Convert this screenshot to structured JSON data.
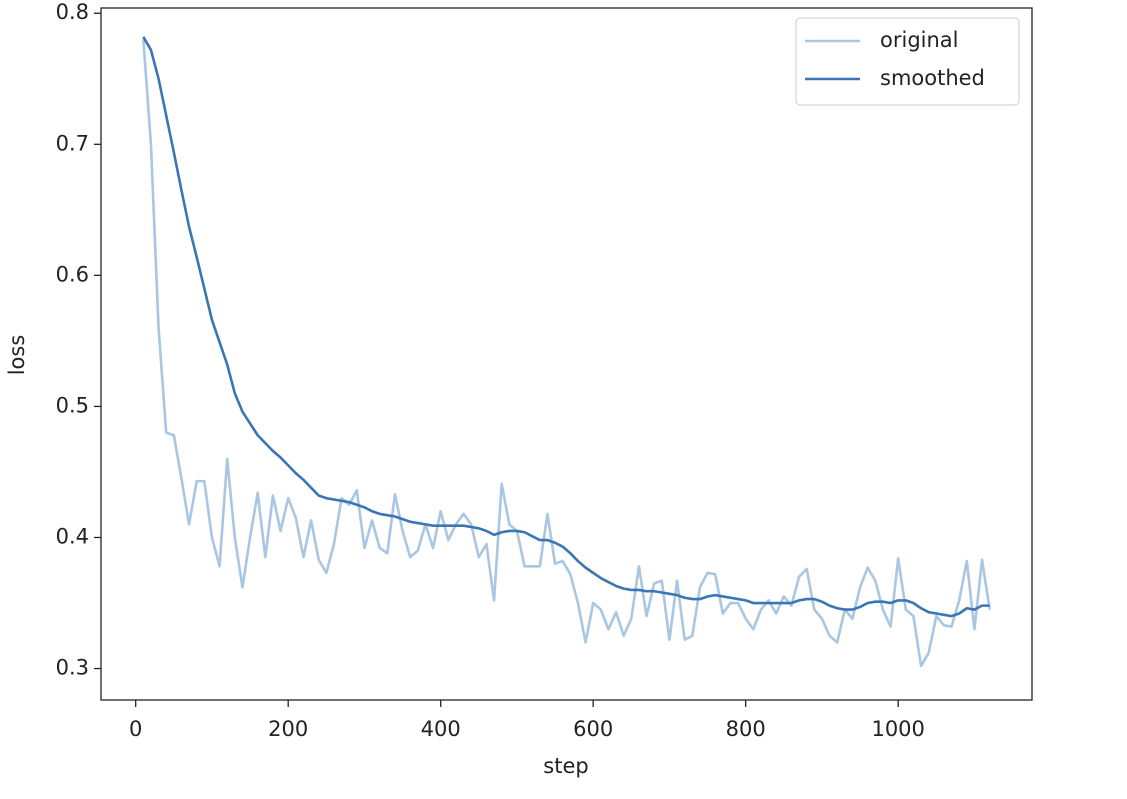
{
  "chart_data": {
    "type": "line",
    "x_label": "step",
    "y_label": "loss",
    "x": [
      10,
      20,
      30,
      40,
      50,
      60,
      70,
      80,
      90,
      100,
      110,
      120,
      130,
      140,
      150,
      160,
      170,
      180,
      190,
      200,
      210,
      220,
      230,
      240,
      250,
      260,
      270,
      280,
      290,
      300,
      310,
      320,
      330,
      340,
      350,
      360,
      370,
      380,
      390,
      400,
      410,
      420,
      430,
      440,
      450,
      460,
      470,
      480,
      490,
      500,
      510,
      520,
      530,
      540,
      550,
      560,
      570,
      580,
      590,
      600,
      610,
      620,
      630,
      640,
      650,
      660,
      670,
      680,
      690,
      700,
      710,
      720,
      730,
      740,
      750,
      760,
      770,
      780,
      790,
      800,
      810,
      820,
      830,
      840,
      850,
      860,
      870,
      880,
      890,
      900,
      910,
      920,
      930,
      940,
      950,
      960,
      970,
      980,
      990,
      1000,
      1010,
      1020,
      1030,
      1040,
      1050,
      1060,
      1070,
      1080,
      1090,
      1100,
      1110,
      1120
    ],
    "series": [
      {
        "name": "original",
        "color": "#a9c6e2",
        "values": [
          0.78,
          0.7,
          0.56,
          0.48,
          0.478,
          0.445,
          0.41,
          0.443,
          0.443,
          0.4,
          0.378,
          0.46,
          0.4,
          0.362,
          0.4,
          0.434,
          0.385,
          0.432,
          0.405,
          0.43,
          0.415,
          0.385,
          0.413,
          0.383,
          0.373,
          0.395,
          0.43,
          0.425,
          0.436,
          0.392,
          0.413,
          0.392,
          0.388,
          0.433,
          0.405,
          0.385,
          0.39,
          0.41,
          0.392,
          0.42,
          0.398,
          0.41,
          0.418,
          0.41,
          0.385,
          0.395,
          0.352,
          0.441,
          0.41,
          0.405,
          0.378,
          0.378,
          0.378,
          0.418,
          0.38,
          0.382,
          0.372,
          0.35,
          0.32,
          0.35,
          0.345,
          0.33,
          0.343,
          0.325,
          0.338,
          0.378,
          0.34,
          0.365,
          0.367,
          0.322,
          0.367,
          0.322,
          0.325,
          0.362,
          0.373,
          0.372,
          0.342,
          0.35,
          0.35,
          0.338,
          0.33,
          0.345,
          0.352,
          0.342,
          0.355,
          0.348,
          0.37,
          0.376,
          0.345,
          0.338,
          0.325,
          0.32,
          0.345,
          0.338,
          0.362,
          0.377,
          0.367,
          0.345,
          0.332,
          0.384,
          0.345,
          0.34,
          0.302,
          0.312,
          0.34,
          0.333,
          0.332,
          0.352,
          0.382,
          0.33,
          0.383,
          0.345
        ]
      },
      {
        "name": "smoothed",
        "color": "#3a76b3",
        "values": [
          0.782,
          0.772,
          0.75,
          0.722,
          0.694,
          0.665,
          0.637,
          0.614,
          0.59,
          0.566,
          0.549,
          0.532,
          0.51,
          0.496,
          0.487,
          0.478,
          0.472,
          0.466,
          0.461,
          0.455,
          0.449,
          0.444,
          0.438,
          0.432,
          0.43,
          0.429,
          0.428,
          0.427,
          0.425,
          0.423,
          0.42,
          0.418,
          0.417,
          0.416,
          0.414,
          0.412,
          0.411,
          0.41,
          0.409,
          0.409,
          0.409,
          0.409,
          0.409,
          0.408,
          0.407,
          0.405,
          0.402,
          0.404,
          0.405,
          0.405,
          0.404,
          0.401,
          0.398,
          0.398,
          0.396,
          0.393,
          0.388,
          0.382,
          0.377,
          0.373,
          0.369,
          0.366,
          0.363,
          0.361,
          0.36,
          0.36,
          0.359,
          0.359,
          0.358,
          0.357,
          0.356,
          0.354,
          0.353,
          0.353,
          0.355,
          0.356,
          0.355,
          0.354,
          0.353,
          0.352,
          0.35,
          0.35,
          0.35,
          0.35,
          0.35,
          0.35,
          0.352,
          0.353,
          0.353,
          0.351,
          0.348,
          0.346,
          0.345,
          0.345,
          0.347,
          0.35,
          0.351,
          0.351,
          0.35,
          0.352,
          0.352,
          0.35,
          0.346,
          0.343,
          0.342,
          0.341,
          0.34,
          0.342,
          0.346,
          0.345,
          0.348,
          0.348
        ]
      }
    ],
    "xlim": [
      -45.5,
      1175.5
    ],
    "ylim": [
      0.276,
      0.804
    ],
    "xticks": [
      0,
      200,
      400,
      600,
      800,
      1000
    ],
    "yticks": [
      0.3,
      0.4,
      0.5,
      0.6,
      0.7,
      0.8
    ],
    "legend": "upper right"
  }
}
